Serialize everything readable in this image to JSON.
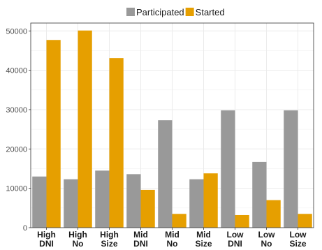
{
  "chart_data": {
    "type": "bar",
    "categories": [
      [
        "High",
        "DNI"
      ],
      [
        "High",
        "No"
      ],
      [
        "High",
        "Size"
      ],
      [
        "Mid",
        "DNI"
      ],
      [
        "Mid",
        "No"
      ],
      [
        "Mid",
        "Size"
      ],
      [
        "Low",
        "DNI"
      ],
      [
        "Low",
        "No"
      ],
      [
        "Low",
        "Size"
      ]
    ],
    "series": [
      {
        "name": "Participated",
        "color": "#999999",
        "values": [
          13000,
          12300,
          14500,
          13600,
          27300,
          12300,
          29800,
          16700,
          29800
        ]
      },
      {
        "name": "Started",
        "color": "#E69F00",
        "values": [
          47700,
          50100,
          43100,
          9600,
          3500,
          13800,
          3200,
          7000,
          3500
        ]
      }
    ],
    "ylim": [
      0,
      52000
    ],
    "yticks": [
      0,
      10000,
      20000,
      30000,
      40000,
      50000
    ],
    "ytick_labels": [
      "0",
      "10000",
      "20000",
      "30000",
      "40000",
      "50000"
    ],
    "grid": true,
    "legend_position": "top"
  }
}
